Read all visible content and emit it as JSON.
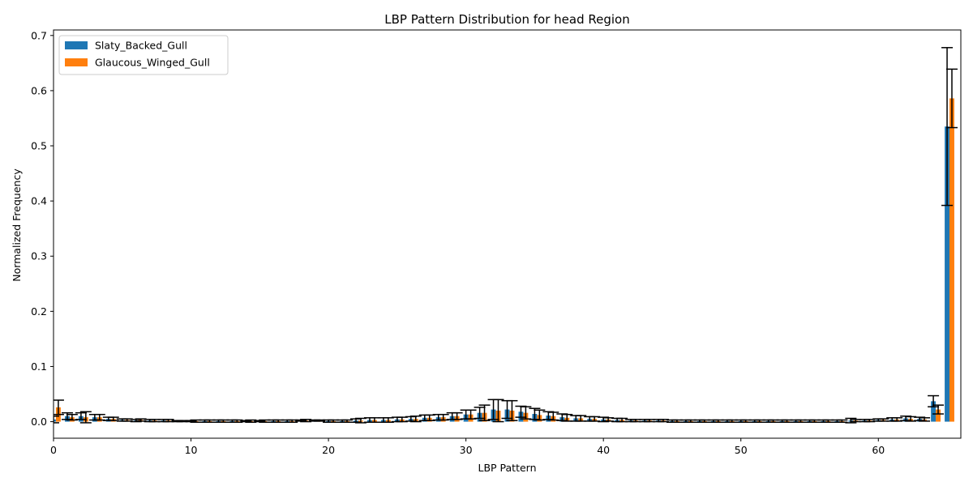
{
  "chart_data": {
    "type": "bar",
    "title": "LBP Pattern Distribution for head Region",
    "xlabel": "LBP Pattern",
    "ylabel": "Normalized Frequency",
    "xlim": [
      0,
      66
    ],
    "ylim": [
      -0.03,
      0.71
    ],
    "xticks": [
      0,
      10,
      20,
      30,
      40,
      50,
      60
    ],
    "yticks": [
      0.0,
      0.1,
      0.2,
      0.3,
      0.4,
      0.5,
      0.6,
      0.7
    ],
    "ytick_labels": [
      "0.0",
      "0.1",
      "0.2",
      "0.3",
      "0.4",
      "0.5",
      "0.6",
      "0.7"
    ],
    "legend_position": "top-left",
    "grid": false,
    "error_bars": true,
    "series": [
      {
        "name": "Slaty_Backed_Gull",
        "color": "#1f77b4",
        "values": [
          0.004,
          0.01,
          0.01,
          0.008,
          0.005,
          0.003,
          0.002,
          0.002,
          0.002,
          0.001,
          0.001,
          0.001,
          0.001,
          0.001,
          0.001,
          0.001,
          0.001,
          0.001,
          0.002,
          0.002,
          0.001,
          0.001,
          0.002,
          0.003,
          0.003,
          0.004,
          0.005,
          0.007,
          0.008,
          0.01,
          0.013,
          0.016,
          0.022,
          0.022,
          0.018,
          0.014,
          0.011,
          0.008,
          0.006,
          0.005,
          0.004,
          0.003,
          0.002,
          0.002,
          0.002,
          0.001,
          0.001,
          0.001,
          0.001,
          0.001,
          0.001,
          0.001,
          0.001,
          0.001,
          0.001,
          0.001,
          0.001,
          0.001,
          0.002,
          0.002,
          0.003,
          0.004,
          0.006,
          0.005,
          0.037,
          0.535
        ],
        "errors": [
          0.006,
          0.006,
          0.006,
          0.005,
          0.003,
          0.002,
          0.002,
          0.002,
          0.002,
          0.001,
          0.001,
          0.002,
          0.002,
          0.002,
          0.001,
          0.001,
          0.002,
          0.002,
          0.001,
          0.001,
          0.002,
          0.002,
          0.003,
          0.004,
          0.004,
          0.004,
          0.004,
          0.005,
          0.005,
          0.006,
          0.008,
          0.01,
          0.018,
          0.016,
          0.01,
          0.01,
          0.007,
          0.006,
          0.005,
          0.004,
          0.004,
          0.003,
          0.002,
          0.002,
          0.002,
          0.002,
          0.002,
          0.002,
          0.002,
          0.002,
          0.002,
          0.002,
          0.002,
          0.002,
          0.002,
          0.002,
          0.002,
          0.002,
          0.004,
          0.002,
          0.002,
          0.003,
          0.004,
          0.003,
          0.01,
          0.143
        ]
      },
      {
        "name": "Glaucous_Winged_Gull",
        "color": "#ff7f0e",
        "values": [
          0.026,
          0.008,
          0.008,
          0.008,
          0.005,
          0.003,
          0.003,
          0.002,
          0.002,
          0.001,
          0.001,
          0.001,
          0.001,
          0.001,
          0.001,
          0.001,
          0.001,
          0.001,
          0.002,
          0.002,
          0.001,
          0.001,
          0.002,
          0.003,
          0.003,
          0.004,
          0.005,
          0.007,
          0.008,
          0.01,
          0.013,
          0.016,
          0.02,
          0.02,
          0.016,
          0.012,
          0.01,
          0.007,
          0.006,
          0.005,
          0.004,
          0.003,
          0.002,
          0.002,
          0.002,
          0.001,
          0.001,
          0.001,
          0.001,
          0.001,
          0.001,
          0.001,
          0.001,
          0.001,
          0.001,
          0.001,
          0.001,
          0.001,
          0.002,
          0.002,
          0.003,
          0.004,
          0.005,
          0.004,
          0.022,
          0.586
        ],
        "errors": [
          0.013,
          0.005,
          0.01,
          0.005,
          0.003,
          0.002,
          0.002,
          0.002,
          0.002,
          0.001,
          0.002,
          0.002,
          0.002,
          0.002,
          0.002,
          0.002,
          0.002,
          0.002,
          0.002,
          0.001,
          0.002,
          0.002,
          0.004,
          0.004,
          0.004,
          0.004,
          0.005,
          0.005,
          0.005,
          0.006,
          0.008,
          0.014,
          0.02,
          0.018,
          0.011,
          0.009,
          0.007,
          0.006,
          0.005,
          0.004,
          0.003,
          0.003,
          0.002,
          0.002,
          0.002,
          0.002,
          0.002,
          0.002,
          0.002,
          0.002,
          0.002,
          0.002,
          0.002,
          0.002,
          0.002,
          0.002,
          0.002,
          0.002,
          0.002,
          0.002,
          0.002,
          0.003,
          0.004,
          0.003,
          0.008,
          0.053
        ]
      }
    ]
  }
}
